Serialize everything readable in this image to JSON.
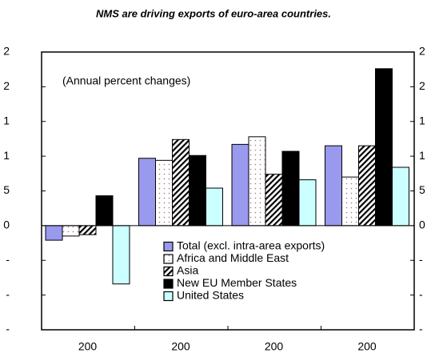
{
  "chart_data": {
    "type": "bar",
    "title": "NMS are driving exports of euro-area countries.",
    "annotation": "(Annual percent changes)",
    "categories": [
      "200",
      "200",
      "200",
      "200"
    ],
    "series": [
      {
        "name": "Total (excl. intra-area exports)",
        "color": "#9999ee",
        "pattern": "solid",
        "values": [
          -2.1,
          9.7,
          11.7,
          11.5
        ]
      },
      {
        "name": "Africa and Middle East",
        "color": "#ffffff",
        "pattern": "dots",
        "values": [
          -1.5,
          9.4,
          12.8,
          7.0
        ]
      },
      {
        "name": "Asia",
        "color": "#ffffff",
        "pattern": "hatch",
        "values": [
          -1.3,
          12.4,
          7.4,
          11.5
        ]
      },
      {
        "name": "New EU Member States",
        "color": "#000000",
        "pattern": "solid",
        "values": [
          4.3,
          10.1,
          10.7,
          22.6
        ]
      },
      {
        "name": "United States",
        "color": "#ccffff",
        "pattern": "solid",
        "values": [
          -8.4,
          5.4,
          6.6,
          8.4
        ]
      }
    ],
    "ylim": [
      -15,
      25
    ],
    "yticks": [
      {
        "value": 25,
        "label": "2"
      },
      {
        "value": 20,
        "label": "2"
      },
      {
        "value": 15,
        "label": "1"
      },
      {
        "value": 10,
        "label": "1"
      },
      5,
      0,
      {
        "value": -5,
        "label": "-"
      },
      {
        "value": -10,
        "label": "-"
      },
      {
        "value": -15,
        "label": "-"
      }
    ],
    "grid": false
  }
}
